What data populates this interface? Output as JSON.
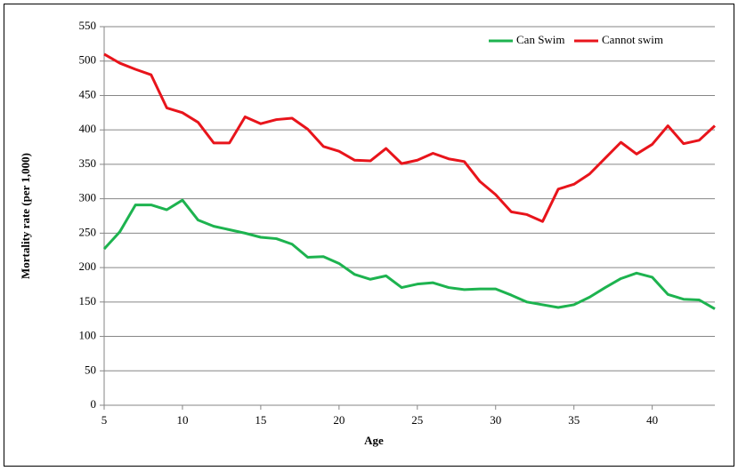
{
  "chart_data": {
    "type": "line",
    "x_label": "Age",
    "y_label": "Mortality rate (per 1,000)",
    "x": [
      5,
      6,
      7,
      8,
      9,
      10,
      11,
      12,
      13,
      14,
      15,
      16,
      17,
      18,
      19,
      20,
      21,
      22,
      23,
      24,
      25,
      26,
      27,
      28,
      29,
      30,
      31,
      32,
      33,
      34,
      35,
      36,
      37,
      38,
      39,
      40,
      41,
      42,
      43,
      44
    ],
    "series": [
      {
        "name": "Can Swim",
        "color": "#1db34f",
        "values": [
          227,
          252,
          291,
          291,
          284,
          298,
          269,
          260,
          255,
          250,
          244,
          242,
          234,
          215,
          216,
          206,
          190,
          183,
          188,
          171,
          176,
          178,
          171,
          168,
          169,
          169,
          160,
          150,
          146,
          142,
          146,
          157,
          171,
          184,
          192,
          186,
          161,
          154,
          153,
          140
        ]
      },
      {
        "name": "Cannot swim",
        "color": "#e8141b",
        "values": [
          510,
          497,
          488,
          480,
          432,
          425,
          411,
          381,
          381,
          419,
          409,
          415,
          417,
          401,
          376,
          369,
          356,
          355,
          373,
          351,
          356,
          366,
          358,
          354,
          325,
          306,
          281,
          277,
          267,
          314,
          321,
          336,
          359,
          382,
          365,
          379,
          406,
          380,
          385,
          406
        ]
      }
    ],
    "xlim": [
      5,
      44
    ],
    "xticks": [
      5,
      10,
      15,
      20,
      25,
      30,
      35,
      40
    ],
    "ylim": [
      0,
      550
    ],
    "yticks": [
      0,
      50,
      100,
      150,
      200,
      250,
      300,
      350,
      400,
      450,
      500,
      550
    ],
    "grid": true,
    "legend": "top-right"
  }
}
